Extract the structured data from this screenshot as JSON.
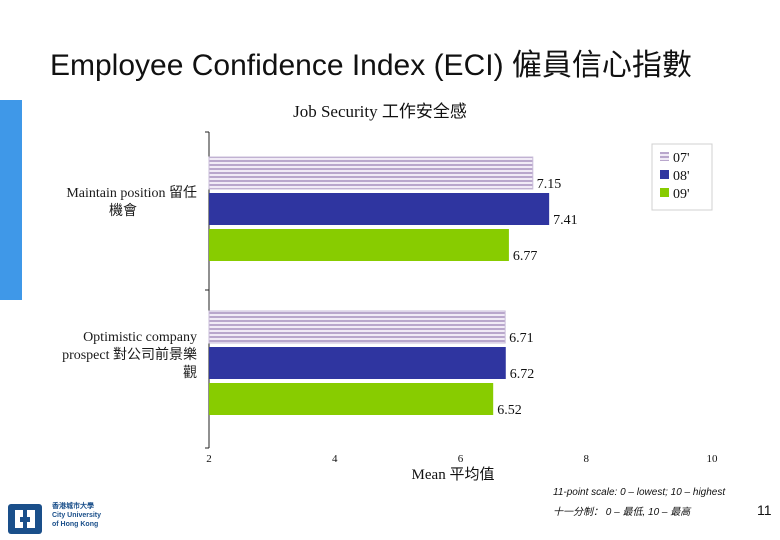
{
  "slide": {
    "title": "Employee Confidence Index (ECI) 僱員信心指數",
    "note_line1": "11-point scale: 0 – lowest; 10 – highest",
    "note_line2": "十一分制： 0 – 最低, 10 – 最高",
    "page_number": "11",
    "logo_text": [
      "香港城市大學",
      "City University",
      "of Hong Kong"
    ],
    "accent_color": "#3f98e8"
  },
  "chart_data": {
    "type": "bar",
    "orientation": "horizontal",
    "title": "Job Security 工作安全感",
    "xlabel": "Mean 平均值",
    "xlim": [
      2,
      10
    ],
    "xticks": [
      "2",
      "4",
      "6",
      "8",
      "10"
    ],
    "categories": [
      [
        "Maintain position 留任",
        "機會"
      ],
      [
        "Optimistic company",
        "prospect 對公司前景樂",
        "觀"
      ]
    ],
    "series": [
      {
        "name": "07'",
        "values": [
          7.15,
          6.71
        ],
        "labels": [
          "7.15",
          "6.71"
        ],
        "color": "#e6d9ef",
        "pattern": "stripes"
      },
      {
        "name": "08'",
        "values": [
          7.41,
          6.72
        ],
        "labels": [
          "7.41",
          "6.72"
        ],
        "color": "#2f35a0"
      },
      {
        "name": "09'",
        "values": [
          6.77,
          6.52
        ],
        "labels": [
          "6.77",
          "6.52"
        ],
        "color": "#88cc00"
      }
    ],
    "legend_position": "top-right",
    "grid": false
  }
}
